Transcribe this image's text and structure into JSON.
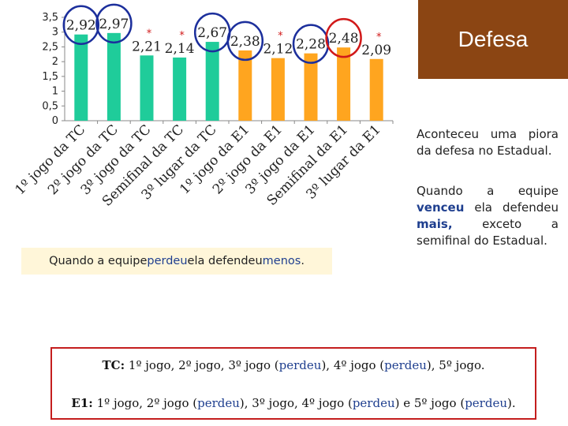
{
  "title": "Defesa",
  "chart_data": {
    "type": "bar",
    "categories": [
      "1º jogo da TC",
      "2º jogo da TC",
      "3º jogo da TC",
      "Semifinal da TC",
      "3º lugar da TC",
      "1º jogo da E1",
      "2º jogo da E1",
      "3º jogo da E1",
      "Semifinal da E1",
      "3º lugar da E1"
    ],
    "values": [
      2.92,
      2.97,
      2.21,
      2.14,
      2.67,
      2.38,
      2.12,
      2.28,
      2.48,
      2.09
    ],
    "value_labels": [
      "2,92",
      "2,97",
      "2,21",
      "2,14",
      "2,67",
      "2,38",
      "2,12",
      "2,28",
      "2,48",
      "2,09"
    ],
    "ylim": [
      0,
      3.5
    ],
    "yticks": [
      "0",
      "0,5",
      "1",
      "1,5",
      "2",
      "2,5",
      "3",
      "3,5"
    ],
    "bar_colors": [
      "#1fcc9a",
      "#1fcc9a",
      "#1fcc9a",
      "#1fcc9a",
      "#1fcc9a",
      "#ffa51f",
      "#ffa51f",
      "#ffa51f",
      "#ffa51f",
      "#ffa51f"
    ],
    "asterisks": [
      false,
      false,
      true,
      true,
      false,
      false,
      true,
      false,
      false,
      true
    ],
    "circled": [
      {
        "index": 0,
        "color": "#1c2f9c"
      },
      {
        "index": 1,
        "color": "#1c2f9c"
      },
      {
        "index": 4,
        "color": "#1c2f9c"
      },
      {
        "index": 5,
        "color": "#1c2f9c"
      },
      {
        "index": 7,
        "color": "#1c2f9c"
      },
      {
        "index": 8,
        "color": "#d11919"
      }
    ],
    "asterisk_symbol": "*"
  },
  "notes": {
    "right1": "Aconteceu uma piora da defesa no Estadual.",
    "right2_a": "Quando a equipe ",
    "right2_b": "venceu",
    "right2_c": " ela defendeu ",
    "right2_d": "mais,",
    "right2_e": " exceto a semifinal do Estadual.",
    "left_a": "Quando a equipe ",
    "left_b": "perdeu",
    "left_c": " ela defendeu ",
    "left_d": "menos",
    "left_e": "."
  },
  "legend": {
    "tc_label": "TC:",
    "tc_a": " 1º jogo, 2º jogo, 3º jogo (",
    "tc_b": "perdeu",
    "tc_c": "), 4º jogo (",
    "tc_d": "perdeu",
    "tc_e": "), 5º jogo.",
    "e1_label": "E1:",
    "e1_a": " 1º jogo, 2º jogo (",
    "e1_b": "perdeu",
    "e1_c": "), 3º jogo, 4º jogo (",
    "e1_d": "perdeu",
    "e1_e": ") e 5º jogo (",
    "e1_f": "perdeu",
    "e1_g": ")."
  }
}
